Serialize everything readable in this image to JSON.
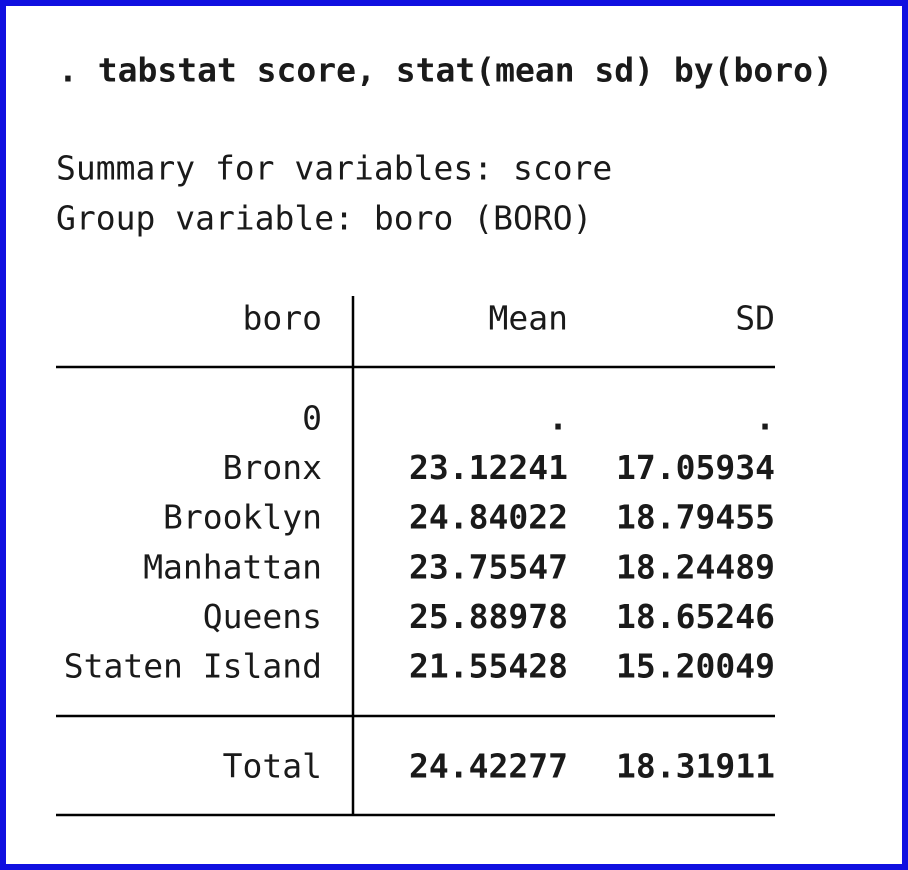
{
  "command": ". tabstat score, stat(mean sd) by(boro)",
  "summary_lines": [
    "Summary for variables: score",
    "Group variable: boro (BORO)"
  ],
  "table": {
    "header": [
      "boro",
      "Mean",
      "SD"
    ],
    "rows": [
      [
        "0",
        ".",
        "."
      ],
      [
        "Bronx",
        "23.12241",
        "17.05934"
      ],
      [
        "Brooklyn",
        "24.84022",
        "18.79455"
      ],
      [
        "Manhattan",
        "23.75547",
        "18.24489"
      ],
      [
        "Queens",
        "25.88978",
        "18.65246"
      ],
      [
        "Staten Island",
        "21.55428",
        "15.20049"
      ]
    ],
    "total": [
      "Total",
      "24.42277",
      "18.31911"
    ]
  }
}
